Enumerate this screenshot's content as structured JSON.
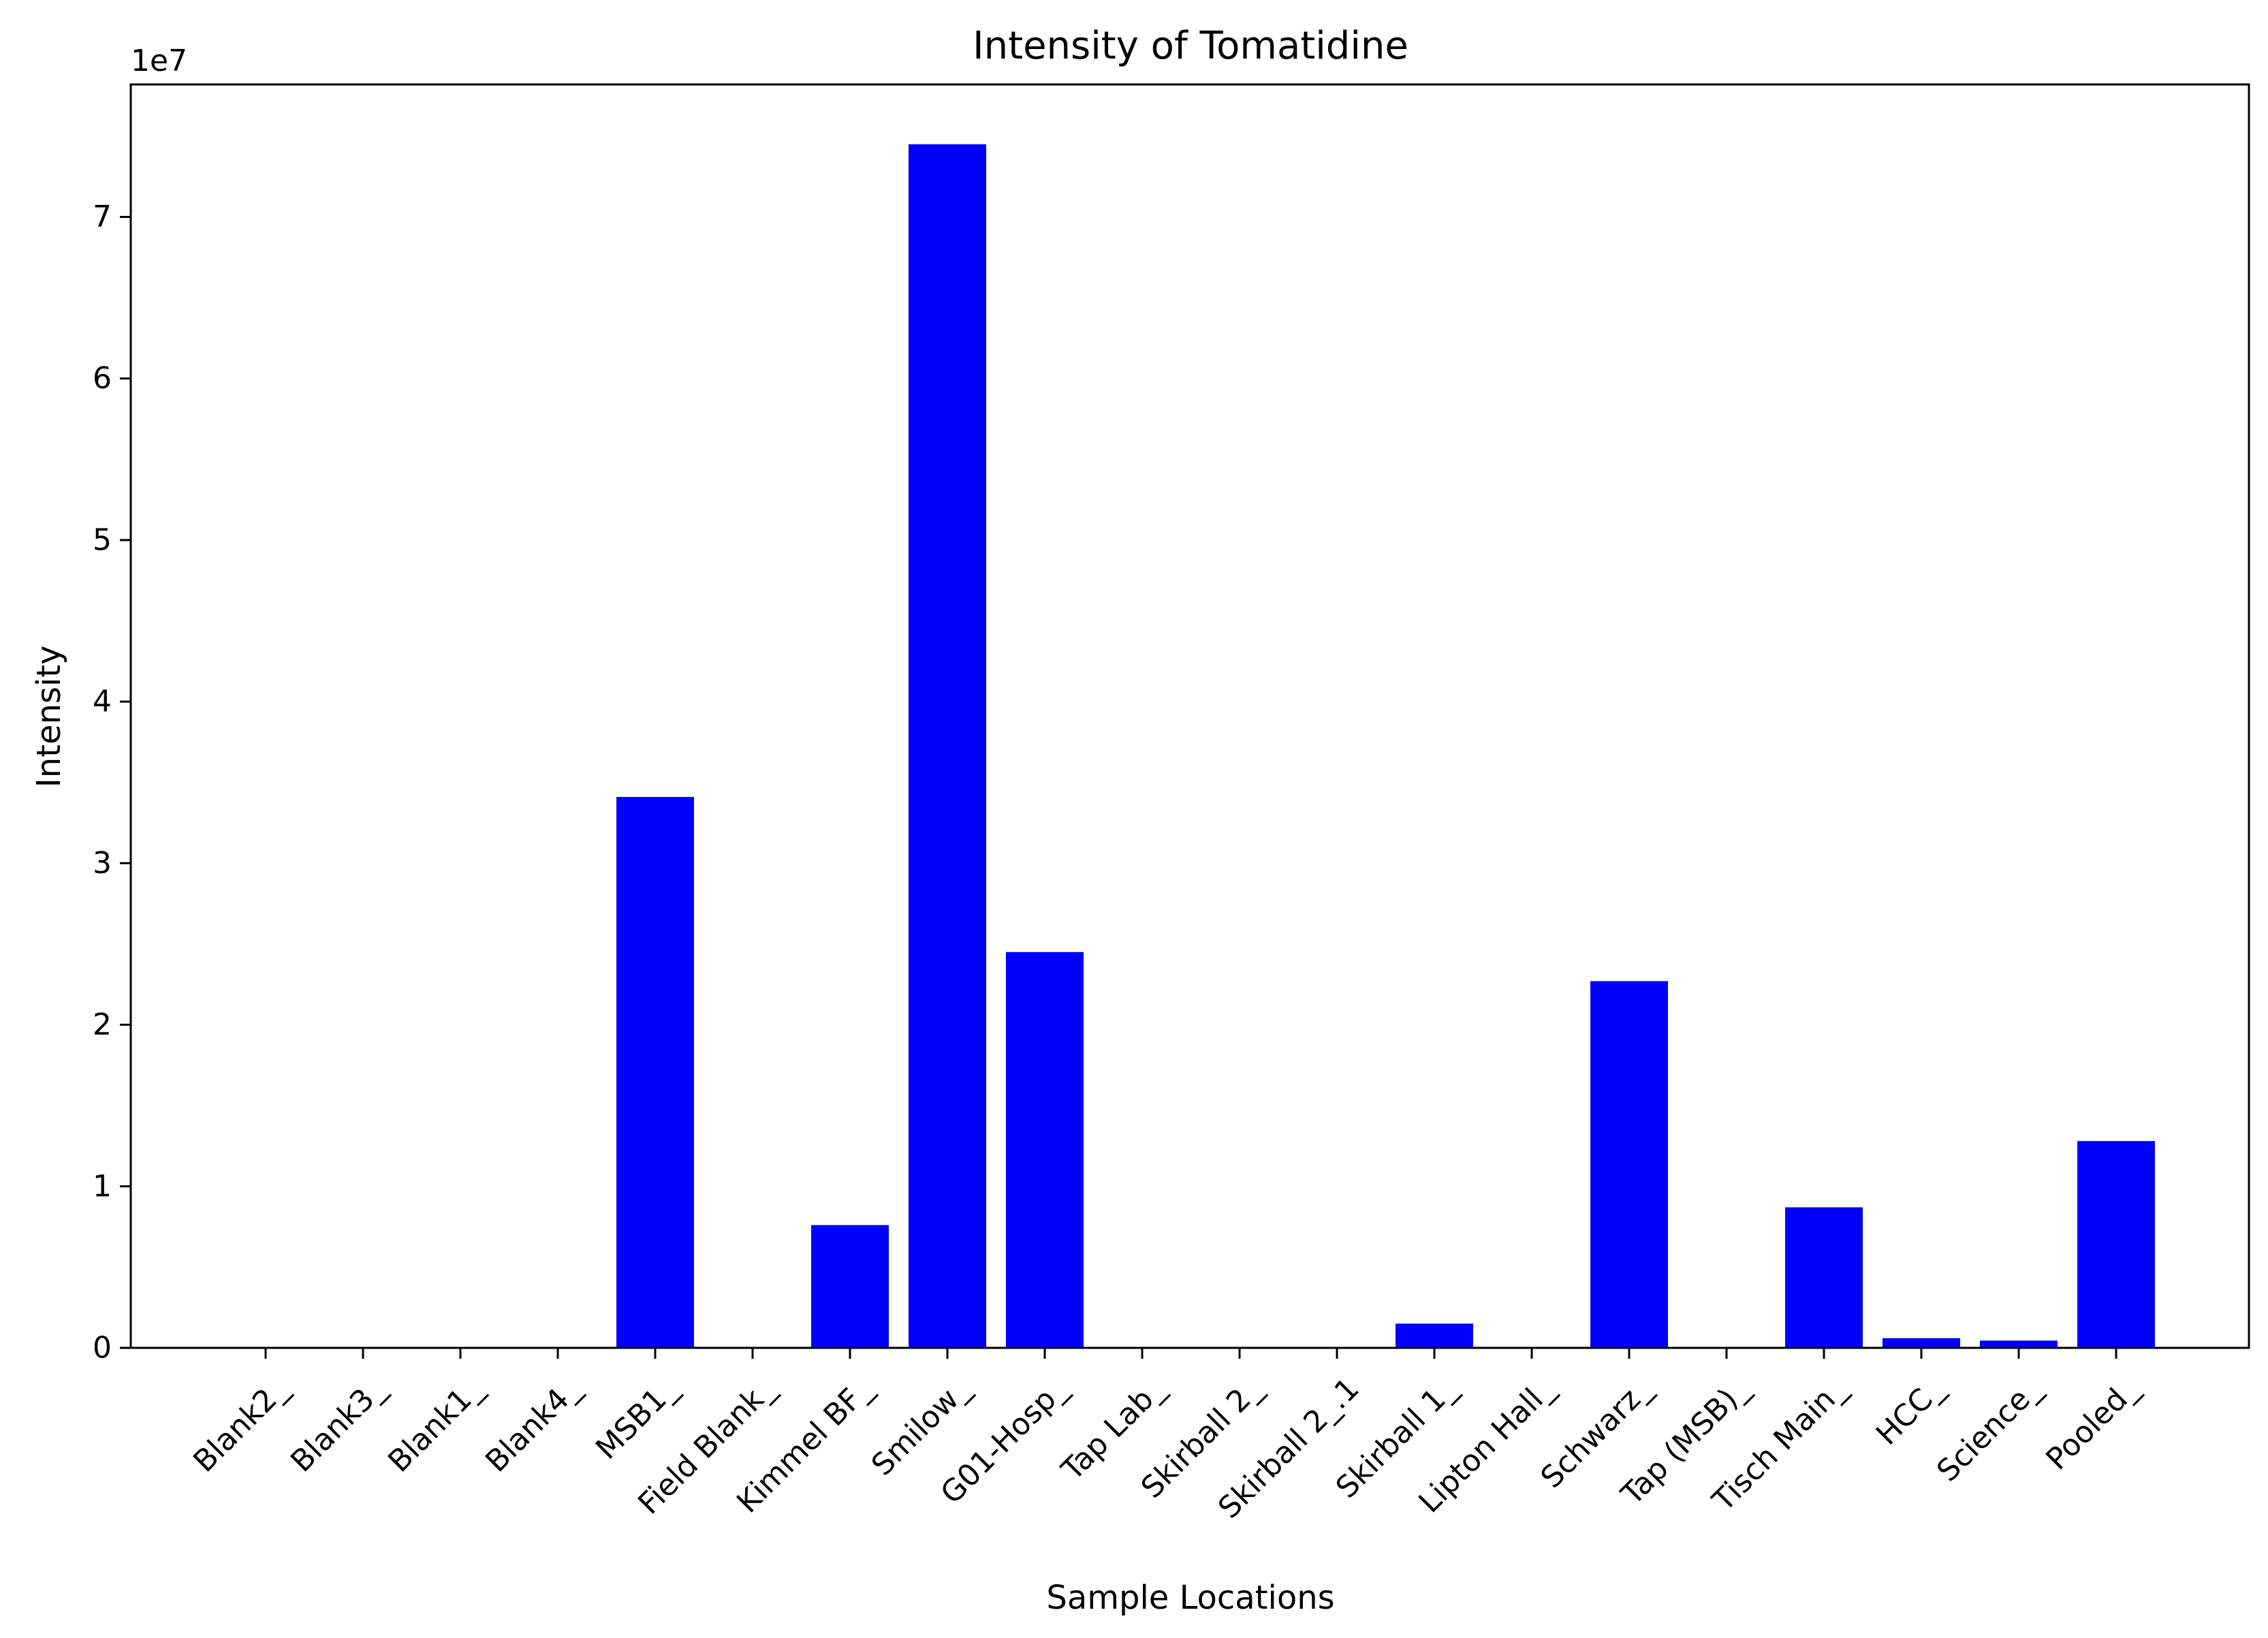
{
  "chart_data": {
    "type": "bar",
    "title": "Intensity of Tomatidine",
    "xlabel": "Sample Locations",
    "ylabel": "Intensity",
    "y_offset_label": "1e7",
    "y_scale": 10000000,
    "ylim": [
      0,
      78200000
    ],
    "y_ticks": [
      0,
      1,
      2,
      3,
      4,
      5,
      6,
      7
    ],
    "bar_color": "#0000ff",
    "grid": false,
    "categories": [
      "Blank2_",
      "Blank3_",
      "Blank1_",
      "Blank4_",
      "MSB1_",
      "Field Blank_",
      "Kimmel BF_",
      "Smilow_",
      "G01-Hosp_",
      "Tap Lab_",
      "Skirball 2_",
      "Skirball 2_.1",
      "Skirball 1_",
      "Lipton Hall_",
      "Schwarz_",
      "Tap (MSB)_",
      "Tisch Main_",
      "HCC_",
      "Science_",
      "Pooled_"
    ],
    "values": [
      0,
      0,
      0,
      0,
      34100000,
      0,
      7600000,
      74500000,
      24500000,
      0,
      0,
      0,
      1500000,
      0,
      22700000,
      0,
      8700000,
      600000,
      450000,
      12800000
    ]
  }
}
